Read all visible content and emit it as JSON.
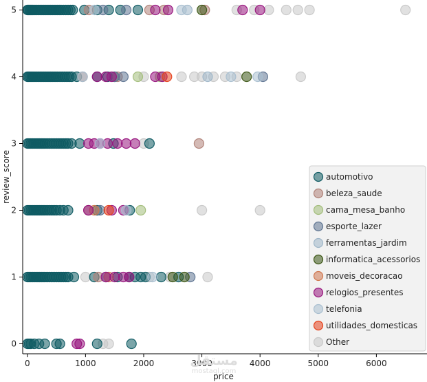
{
  "chart_data": {
    "type": "scatter",
    "title": "",
    "xlabel": "price",
    "ylabel": "review_score",
    "xlim": [
      -80,
      6870
    ],
    "ylim": [
      -0.15,
      5.15
    ],
    "xticks": [
      0,
      1000,
      2000,
      3000,
      4000,
      5000,
      6000
    ],
    "yticks": [
      0,
      1,
      2,
      3,
      4,
      5
    ],
    "grid": false,
    "legend_position": "lower-right",
    "marker_alpha": 0.55,
    "series": [
      {
        "name": "automotivo",
        "color": "#0f5b63",
        "points": [
          [
            5,
            5
          ],
          [
            20,
            5
          ],
          [
            40,
            5
          ],
          [
            60,
            5
          ],
          [
            80,
            5
          ],
          [
            100,
            5
          ],
          [
            130,
            5
          ],
          [
            160,
            5
          ],
          [
            190,
            5
          ],
          [
            220,
            5
          ],
          [
            250,
            5
          ],
          [
            280,
            5
          ],
          [
            310,
            5
          ],
          [
            340,
            5
          ],
          [
            370,
            5
          ],
          [
            400,
            5
          ],
          [
            430,
            5
          ],
          [
            460,
            5
          ],
          [
            490,
            5
          ],
          [
            520,
            5
          ],
          [
            550,
            5
          ],
          [
            580,
            5
          ],
          [
            620,
            5
          ],
          [
            660,
            5
          ],
          [
            700,
            5
          ],
          [
            740,
            5
          ],
          [
            780,
            5
          ],
          [
            980,
            5
          ],
          [
            1200,
            5
          ],
          [
            1400,
            5
          ],
          [
            1600,
            5
          ],
          [
            1900,
            5
          ],
          [
            5,
            4
          ],
          [
            25,
            4
          ],
          [
            50,
            4
          ],
          [
            75,
            4
          ],
          [
            100,
            4
          ],
          [
            130,
            4
          ],
          [
            160,
            4
          ],
          [
            190,
            4
          ],
          [
            220,
            4
          ],
          [
            250,
            4
          ],
          [
            280,
            4
          ],
          [
            310,
            4
          ],
          [
            340,
            4
          ],
          [
            370,
            4
          ],
          [
            400,
            4
          ],
          [
            430,
            4
          ],
          [
            460,
            4
          ],
          [
            490,
            4
          ],
          [
            520,
            4
          ],
          [
            560,
            4
          ],
          [
            600,
            4
          ],
          [
            640,
            4
          ],
          [
            680,
            4
          ],
          [
            720,
            4
          ],
          [
            760,
            4
          ],
          [
            850,
            4
          ],
          [
            1200,
            4
          ],
          [
            1380,
            4
          ],
          [
            1500,
            4
          ],
          [
            5,
            3
          ],
          [
            30,
            3
          ],
          [
            60,
            3
          ],
          [
            90,
            3
          ],
          [
            120,
            3
          ],
          [
            150,
            3
          ],
          [
            180,
            3
          ],
          [
            210,
            3
          ],
          [
            240,
            3
          ],
          [
            270,
            3
          ],
          [
            300,
            3
          ],
          [
            340,
            3
          ],
          [
            380,
            3
          ],
          [
            420,
            3
          ],
          [
            460,
            3
          ],
          [
            500,
            3
          ],
          [
            540,
            3
          ],
          [
            580,
            3
          ],
          [
            620,
            3
          ],
          [
            660,
            3
          ],
          [
            700,
            3
          ],
          [
            760,
            3
          ],
          [
            900,
            3
          ],
          [
            1480,
            3
          ],
          [
            2100,
            3
          ],
          [
            5,
            2
          ],
          [
            30,
            2
          ],
          [
            60,
            2
          ],
          [
            90,
            2
          ],
          [
            120,
            2
          ],
          [
            150,
            2
          ],
          [
            180,
            2
          ],
          [
            210,
            2
          ],
          [
            240,
            2
          ],
          [
            270,
            2
          ],
          [
            300,
            2
          ],
          [
            340,
            2
          ],
          [
            380,
            2
          ],
          [
            420,
            2
          ],
          [
            460,
            2
          ],
          [
            500,
            2
          ],
          [
            560,
            2
          ],
          [
            620,
            2
          ],
          [
            700,
            2
          ],
          [
            1200,
            2
          ],
          [
            1760,
            2
          ],
          [
            5,
            1
          ],
          [
            30,
            1
          ],
          [
            60,
            1
          ],
          [
            90,
            1
          ],
          [
            120,
            1
          ],
          [
            150,
            1
          ],
          [
            180,
            1
          ],
          [
            210,
            1
          ],
          [
            240,
            1
          ],
          [
            270,
            1
          ],
          [
            300,
            1
          ],
          [
            340,
            1
          ],
          [
            380,
            1
          ],
          [
            420,
            1
          ],
          [
            460,
            1
          ],
          [
            500,
            1
          ],
          [
            540,
            1
          ],
          [
            580,
            1
          ],
          [
            620,
            1
          ],
          [
            660,
            1
          ],
          [
            700,
            1
          ],
          [
            800,
            1
          ],
          [
            1150,
            1
          ],
          [
            1550,
            1
          ],
          [
            1750,
            1
          ],
          [
            1850,
            1
          ],
          [
            1950,
            1
          ],
          [
            2030,
            1
          ],
          [
            2300,
            1
          ],
          [
            2600,
            1
          ],
          [
            5,
            0
          ],
          [
            30,
            0
          ],
          [
            60,
            0
          ],
          [
            120,
            0
          ],
          [
            200,
            0
          ],
          [
            300,
            0
          ],
          [
            500,
            0
          ],
          [
            560,
            0
          ],
          [
            1200,
            0
          ],
          [
            1790,
            0
          ]
        ]
      },
      {
        "name": "beleza_saude",
        "color": "#b08278",
        "points": [
          [
            1060,
            5
          ],
          [
            2100,
            5
          ],
          [
            2350,
            5
          ],
          [
            3050,
            5
          ],
          [
            950,
            4
          ],
          [
            1550,
            4
          ],
          [
            2950,
            3
          ],
          [
            1050,
            2
          ],
          [
            1220,
            1
          ]
        ]
      },
      {
        "name": "cama_mesa_banho",
        "color": "#a2bd7a",
        "points": [
          [
            1900,
            4
          ],
          [
            2280,
            4
          ],
          [
            1950,
            2
          ]
        ]
      },
      {
        "name": "esporte_lazer",
        "color": "#5f7592",
        "points": [
          [
            1300,
            5
          ],
          [
            1700,
            5
          ],
          [
            1500,
            4
          ],
          [
            1650,
            4
          ],
          [
            4050,
            4
          ],
          [
            1250,
            2
          ],
          [
            1350,
            1
          ],
          [
            2800,
            1
          ]
        ]
      },
      {
        "name": "ferramentas_jardim",
        "color": "#9fb6c8",
        "points": [
          [
            2750,
            5
          ],
          [
            3100,
            4
          ],
          [
            1350,
            1
          ]
        ]
      },
      {
        "name": "informatica_acessorios",
        "color": "#3b5514",
        "points": [
          [
            3000,
            5
          ],
          [
            3770,
            4
          ],
          [
            2500,
            1
          ],
          [
            2700,
            1
          ]
        ]
      },
      {
        "name": "moveis_decoracao",
        "color": "#d0764e",
        "points": [
          [
            1150,
            2
          ],
          [
            1400,
            1
          ]
        ]
      },
      {
        "name": "relogios_presentes",
        "color": "#98157e",
        "points": [
          [
            2200,
            5
          ],
          [
            2420,
            5
          ],
          [
            3700,
            5
          ],
          [
            4000,
            5
          ],
          [
            1200,
            4
          ],
          [
            1350,
            4
          ],
          [
            1450,
            4
          ],
          [
            2200,
            4
          ],
          [
            2320,
            4
          ],
          [
            1050,
            3
          ],
          [
            1150,
            3
          ],
          [
            1250,
            3
          ],
          [
            1380,
            3
          ],
          [
            1550,
            3
          ],
          [
            1700,
            3
          ],
          [
            1850,
            3
          ],
          [
            1050,
            2
          ],
          [
            1450,
            2
          ],
          [
            1650,
            2
          ],
          [
            1350,
            1
          ],
          [
            1500,
            1
          ],
          [
            1650,
            1
          ],
          [
            1750,
            1
          ],
          [
            850,
            0
          ],
          [
            900,
            0
          ]
        ]
      },
      {
        "name": "telefonia",
        "color": "#a9bfd0",
        "points": [
          [
            1150,
            5
          ],
          [
            2650,
            5
          ],
          [
            950,
            4
          ],
          [
            3500,
            4
          ],
          [
            3960,
            4
          ],
          [
            1250,
            3
          ],
          [
            1700,
            2
          ],
          [
            2150,
            1
          ]
        ]
      },
      {
        "name": "utilidades_domesticas",
        "color": "#e5401a",
        "points": [
          [
            2400,
            4
          ],
          [
            1400,
            2
          ]
        ]
      },
      {
        "name": "Other",
        "color": "#c8c8c8",
        "points": [
          [
            3600,
            5
          ],
          [
            3900,
            5
          ],
          [
            4150,
            5
          ],
          [
            4450,
            5
          ],
          [
            4650,
            5
          ],
          [
            4850,
            5
          ],
          [
            6500,
            5
          ],
          [
            2000,
            4
          ],
          [
            2650,
            4
          ],
          [
            2870,
            4
          ],
          [
            3000,
            4
          ],
          [
            3200,
            4
          ],
          [
            3400,
            4
          ],
          [
            3600,
            4
          ],
          [
            4700,
            4
          ],
          [
            2000,
            3
          ],
          [
            3000,
            2
          ],
          [
            4000,
            2
          ],
          [
            1000,
            1
          ],
          [
            2100,
            1
          ],
          [
            2450,
            1
          ],
          [
            3100,
            1
          ],
          [
            1300,
            0
          ],
          [
            1400,
            0
          ],
          [
            6720,
            0
          ]
        ]
      }
    ]
  },
  "watermark": {
    "text": "مستقل",
    "subtext": "mostaql.com"
  }
}
